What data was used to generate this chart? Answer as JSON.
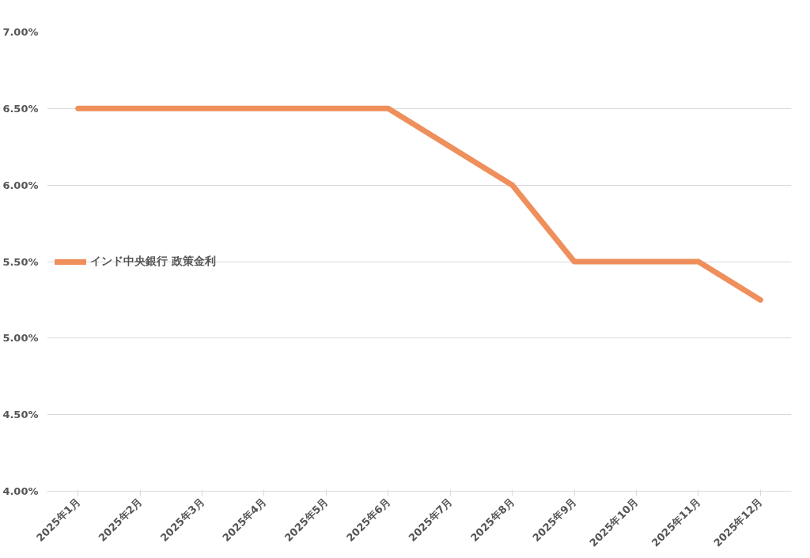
{
  "chart_data": {
    "type": "line",
    "categories": [
      "2025年1月",
      "2025年2月",
      "2025年3月",
      "2025年4月",
      "2025年5月",
      "2025年6月",
      "2025年7月",
      "2025年8月",
      "2025年9月",
      "2025年10月",
      "2025年11月",
      "2025年12月"
    ],
    "series": [
      {
        "name": "インド中央銀行 政策金利",
        "color": "#ef8f5c",
        "values": [
          6.5,
          6.5,
          6.5,
          6.5,
          6.5,
          6.5,
          6.25,
          6.0,
          5.5,
          5.5,
          5.5,
          5.25
        ]
      }
    ],
    "ylim": [
      4,
      7
    ],
    "yticks": [
      {
        "value": 4,
        "label": "4.00%"
      },
      {
        "value": 4.5,
        "label": "4.50%"
      },
      {
        "value": 5,
        "label": "5.00%"
      },
      {
        "value": 5.5,
        "label": "5.50%"
      },
      {
        "value": 6,
        "label": "6.00%"
      },
      {
        "value": 6.5,
        "label": "6.50%"
      },
      {
        "value": 7,
        "label": "7.00%"
      }
    ],
    "grid": "y",
    "legend": "left",
    "marker": "none",
    "line_style": "solid"
  }
}
